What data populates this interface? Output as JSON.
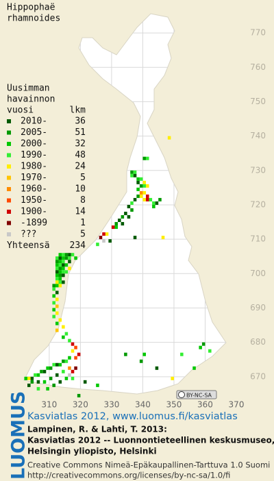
{
  "title": [
    "Hippophaë",
    "rhamnoides"
  ],
  "legend": {
    "header": [
      "Uusimman",
      "havainnon",
      "vuosi"
    ],
    "count_header": "lkm",
    "items": [
      {
        "label": "2010-",
        "count": 36,
        "color": "#005a00"
      },
      {
        "label": "2005-",
        "count": 51,
        "color": "#009900"
      },
      {
        "label": "2000-",
        "count": 32,
        "color": "#00c800"
      },
      {
        "label": "1990-",
        "count": 48,
        "color": "#33ee33"
      },
      {
        "label": "1980-",
        "count": 24,
        "color": "#ffee00"
      },
      {
        "label": "1970-",
        "count": 5,
        "color": "#ffc400"
      },
      {
        "label": "1960-",
        "count": 10,
        "color": "#ff8c00"
      },
      {
        "label": "1950-",
        "count": 8,
        "color": "#ff4a00"
      },
      {
        "label": "1900-",
        "count": 14,
        "color": "#d00000"
      },
      {
        "label": "-1899",
        "count": 1,
        "color": "#800000"
      },
      {
        "label": "???",
        "count": 5,
        "color": "#c8c8c8"
      }
    ],
    "total_label": "Yhteensä",
    "total": 234
  },
  "map": {
    "xlim": [
      303,
      370
    ],
    "ylim": [
      660,
      775
    ],
    "xticks": [
      310,
      320,
      330,
      340,
      350,
      360,
      370
    ],
    "yticks": [
      670,
      680,
      690,
      700,
      710,
      720,
      730,
      740,
      750,
      760,
      770
    ],
    "license_badge": "BY-NC-SA",
    "observations": [
      [
        348,
        739,
        4
      ],
      [
        340,
        733,
        1
      ],
      [
        341,
        733,
        3
      ],
      [
        336,
        729,
        1
      ],
      [
        337,
        729,
        3
      ],
      [
        336,
        728,
        3
      ],
      [
        337,
        728,
        0
      ],
      [
        338,
        727,
        2
      ],
      [
        339,
        727,
        3
      ],
      [
        340,
        726,
        4
      ],
      [
        338,
        726,
        0
      ],
      [
        339,
        725,
        1
      ],
      [
        340,
        725,
        3
      ],
      [
        338,
        724,
        2
      ],
      [
        341,
        725,
        4
      ],
      [
        339,
        723,
        6
      ],
      [
        340,
        723,
        4
      ],
      [
        338,
        722,
        1
      ],
      [
        339,
        722,
        4
      ],
      [
        341,
        722,
        8
      ],
      [
        342,
        721,
        3
      ],
      [
        343,
        720,
        3
      ],
      [
        341,
        721,
        8
      ],
      [
        340,
        721,
        4
      ],
      [
        337,
        721,
        0
      ],
      [
        336,
        720,
        3
      ],
      [
        335,
        719,
        0
      ],
      [
        336,
        718,
        1
      ],
      [
        334,
        717,
        0
      ],
      [
        335,
        716,
        0
      ],
      [
        333,
        716,
        1
      ],
      [
        332,
        715,
        0
      ],
      [
        333,
        714,
        0
      ],
      [
        331,
        714,
        1
      ],
      [
        330,
        713,
        8
      ],
      [
        331,
        713,
        2
      ],
      [
        345,
        721,
        1
      ],
      [
        343,
        719,
        2
      ],
      [
        344,
        720,
        0
      ],
      [
        328,
        711,
        4
      ],
      [
        327,
        711,
        8
      ],
      [
        326,
        710,
        9
      ],
      [
        327,
        709,
        10
      ],
      [
        329,
        709,
        0
      ],
      [
        325,
        708,
        3
      ],
      [
        337,
        710,
        0
      ],
      [
        346,
        710,
        4
      ],
      [
        313,
        705,
        2
      ],
      [
        314,
        705,
        3
      ],
      [
        315,
        705,
        1
      ],
      [
        316,
        705,
        0
      ],
      [
        317,
        705,
        3
      ],
      [
        312,
        704,
        3
      ],
      [
        313,
        704,
        0
      ],
      [
        314,
        704,
        2
      ],
      [
        315,
        704,
        1
      ],
      [
        316,
        704,
        3
      ],
      [
        318,
        704,
        2
      ],
      [
        312,
        703,
        1
      ],
      [
        313,
        703,
        2
      ],
      [
        314,
        703,
        3
      ],
      [
        316,
        703,
        0
      ],
      [
        312,
        702,
        2
      ],
      [
        313,
        702,
        3
      ],
      [
        314,
        702,
        0
      ],
      [
        315,
        702,
        2
      ],
      [
        312,
        701,
        3
      ],
      [
        313,
        701,
        1
      ],
      [
        314,
        701,
        2
      ],
      [
        316,
        701,
        4
      ],
      [
        312,
        700,
        0
      ],
      [
        313,
        700,
        2
      ],
      [
        314,
        700,
        3
      ],
      [
        315,
        700,
        3
      ],
      [
        312,
        699,
        2
      ],
      [
        313,
        699,
        1
      ],
      [
        314,
        699,
        0
      ],
      [
        312,
        698,
        3
      ],
      [
        313,
        698,
        2
      ],
      [
        312,
        697,
        4
      ],
      [
        313,
        697,
        3
      ],
      [
        314,
        697,
        0
      ],
      [
        311,
        696,
        1
      ],
      [
        312,
        696,
        2
      ],
      [
        313,
        696,
        4
      ],
      [
        311,
        695,
        3
      ],
      [
        312,
        694,
        0
      ],
      [
        311,
        693,
        2
      ],
      [
        312,
        692,
        4
      ],
      [
        311,
        691,
        3
      ],
      [
        312,
        690,
        5
      ],
      [
        311,
        689,
        2
      ],
      [
        312,
        688,
        4
      ],
      [
        311,
        687,
        3
      ],
      [
        313,
        686,
        4
      ],
      [
        312,
        685,
        2
      ],
      [
        314,
        684,
        4
      ],
      [
        312,
        683,
        5
      ],
      [
        315,
        682,
        3
      ],
      [
        314,
        681,
        2
      ],
      [
        316,
        680,
        3
      ],
      [
        317,
        679,
        8
      ],
      [
        318,
        678,
        7
      ],
      [
        317,
        677,
        4
      ],
      [
        319,
        676,
        8
      ],
      [
        318,
        675,
        7
      ],
      [
        316,
        675,
        2
      ],
      [
        315,
        674,
        3
      ],
      [
        314,
        674,
        1
      ],
      [
        313,
        673,
        2
      ],
      [
        312,
        673,
        0
      ],
      [
        311,
        673,
        3
      ],
      [
        310,
        672,
        1
      ],
      [
        309,
        672,
        2
      ],
      [
        308,
        671,
        0
      ],
      [
        307,
        671,
        1
      ],
      [
        306,
        670,
        2
      ],
      [
        305,
        670,
        3
      ],
      [
        304,
        669,
        0
      ],
      [
        303,
        669,
        4
      ],
      [
        302,
        669,
        2
      ],
      [
        304,
        668,
        1
      ],
      [
        306,
        668,
        0
      ],
      [
        308,
        668,
        2
      ],
      [
        310,
        669,
        1
      ],
      [
        312,
        670,
        0
      ],
      [
        314,
        671,
        3
      ],
      [
        316,
        672,
        6
      ],
      [
        317,
        671,
        8
      ],
      [
        318,
        672,
        9
      ],
      [
        316,
        670,
        10
      ],
      [
        317,
        669,
        3
      ],
      [
        315,
        669,
        2
      ],
      [
        313,
        668,
        0
      ],
      [
        311,
        667,
        1
      ],
      [
        309,
        666,
        2
      ],
      [
        306,
        666,
        3
      ],
      [
        303,
        667,
        0
      ],
      [
        334,
        676,
        1
      ],
      [
        340,
        676,
        2
      ],
      [
        344,
        672,
        0
      ],
      [
        349,
        669,
        4
      ],
      [
        358,
        678,
        2
      ],
      [
        359,
        679,
        1
      ],
      [
        361,
        677,
        3
      ],
      [
        352,
        676,
        3
      ],
      [
        325,
        667,
        2
      ],
      [
        321,
        668,
        0
      ],
      [
        319,
        664,
        1
      ],
      [
        339,
        674,
        1
      ],
      [
        356,
        672,
        2
      ]
    ]
  },
  "footer": {
    "logo": "LUOMUS",
    "link": "Kasviatlas 2012, www.luomus.fi/kasviatlas",
    "citation": [
      "Lampinen, R. & Lahti, T. 2013:",
      "Kasviatlas 2012 -- Luonnontieteellinen keskusmuseo,",
      "Helsingin yliopisto, Helsinki"
    ],
    "license": [
      "Creative Commons Nimeä-Epäkaupallinen-Tarttuva 1.0 Suomi",
      "http://creativecommons.org/licenses/by-nc-sa/1.0/fi"
    ]
  }
}
